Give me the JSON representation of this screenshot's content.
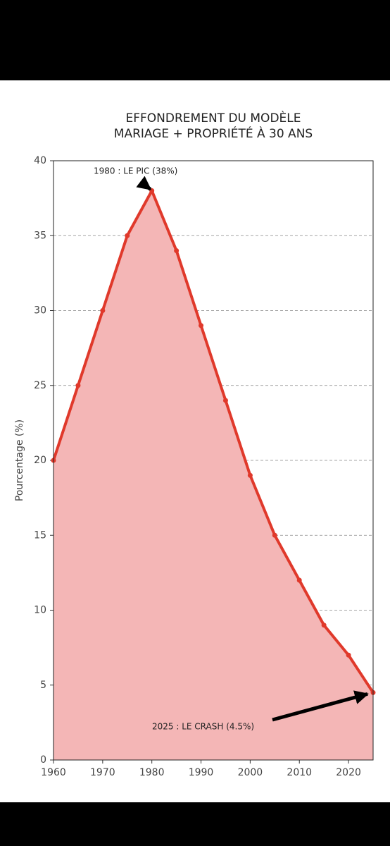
{
  "chart_data": {
    "type": "line",
    "title": [
      "EFFONDREMENT DU MODÈLE",
      "MARIAGE + PROPRIÉTÉ À 30 ANS"
    ],
    "y_label": "Pourcentage (%)",
    "x": [
      1960,
      1965,
      1970,
      1975,
      1980,
      1985,
      1990,
      1995,
      2000,
      2005,
      2010,
      2015,
      2020,
      2025
    ],
    "values": [
      20,
      25,
      30,
      35,
      38,
      34,
      29,
      24,
      19,
      15,
      12,
      9,
      7,
      4.5
    ],
    "color": "#e0392b",
    "fill_color": "#f4b6b6",
    "xlim": [
      1960,
      2025
    ],
    "xticks": [
      1960,
      1970,
      1980,
      1990,
      2000,
      2010,
      2020
    ],
    "ylim": [
      0,
      40
    ],
    "yticks": [
      0,
      5,
      10,
      15,
      20,
      25,
      30,
      35,
      40
    ],
    "grid": true,
    "annotations": [
      {
        "text": "1980 : LE PIC (38%)",
        "xy": [
          1980,
          38
        ]
      },
      {
        "text": "2025 : LE CRASH (4.5%)",
        "xy": [
          2025,
          4.5
        ]
      }
    ]
  }
}
